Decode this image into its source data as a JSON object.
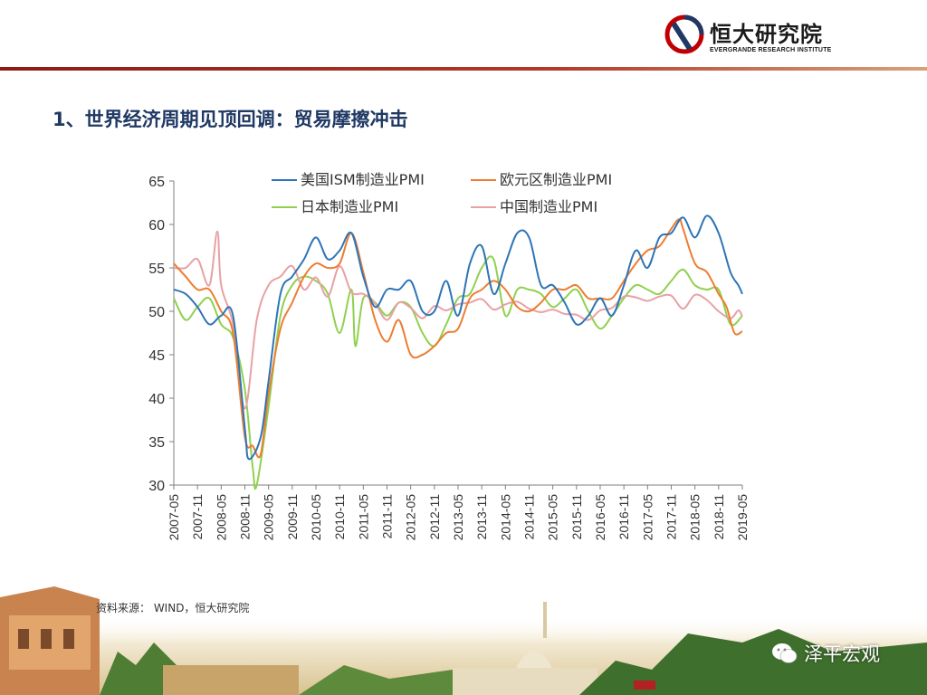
{
  "header": {
    "logo_cn": "恒大研究院",
    "logo_en": "EVERGRANDE RESEARCH INSTITUTE",
    "accent_color": "#8c1c13"
  },
  "slide": {
    "title": "1、世界经济周期见顶回调：贸易摩擦冲击"
  },
  "source": "资料来源： WIND，恒大研究院",
  "watermark": "泽平宏观",
  "chart_data": {
    "type": "line",
    "title": "",
    "xlabel": "",
    "ylabel": "",
    "ylim": [
      30,
      65
    ],
    "yticks": [
      30,
      35,
      40,
      45,
      50,
      55,
      60,
      65
    ],
    "xlim": [
      "2007-05",
      "2019-05"
    ],
    "xticks": [
      "2007-05",
      "2007-11",
      "2008-05",
      "2008-11",
      "2009-05",
      "2009-11",
      "2010-05",
      "2010-11",
      "2011-05",
      "2011-11",
      "2012-05",
      "2012-11",
      "2013-05",
      "2013-11",
      "2014-05",
      "2014-11",
      "2015-05",
      "2015-11",
      "2016-05",
      "2016-11",
      "2017-05",
      "2017-11",
      "2018-05",
      "2018-11",
      "2019-05"
    ],
    "grid": false,
    "legend_position": "top",
    "series": [
      {
        "name": "美国ISM制造业PMI",
        "color": "#2e75b6",
        "points": [
          [
            "2007-05",
            52.5
          ],
          [
            "2007-08",
            52
          ],
          [
            "2007-11",
            50.5
          ],
          [
            "2008-02",
            48.5
          ],
          [
            "2008-05",
            49.5
          ],
          [
            "2008-08",
            49.5
          ],
          [
            "2008-11",
            36.5
          ],
          [
            "2008-12",
            33
          ],
          [
            "2009-03",
            35.5
          ],
          [
            "2009-05",
            42
          ],
          [
            "2009-08",
            52
          ],
          [
            "2009-11",
            54
          ],
          [
            "2010-02",
            56
          ],
          [
            "2010-05",
            58.5
          ],
          [
            "2010-08",
            56
          ],
          [
            "2010-11",
            57
          ],
          [
            "2011-02",
            59
          ],
          [
            "2011-05",
            54
          ],
          [
            "2011-08",
            50.5
          ],
          [
            "2011-11",
            52.5
          ],
          [
            "2012-02",
            52.5
          ],
          [
            "2012-05",
            53.5
          ],
          [
            "2012-08",
            50
          ],
          [
            "2012-11",
            50
          ],
          [
            "2013-02",
            53.5
          ],
          [
            "2013-05",
            49.5
          ],
          [
            "2013-08",
            55.5
          ],
          [
            "2013-11",
            57.5
          ],
          [
            "2014-02",
            52
          ],
          [
            "2014-05",
            55.5
          ],
          [
            "2014-08",
            59
          ],
          [
            "2014-11",
            58.5
          ],
          [
            "2015-02",
            53
          ],
          [
            "2015-05",
            53
          ],
          [
            "2015-08",
            51
          ],
          [
            "2015-11",
            48.5
          ],
          [
            "2016-02",
            49.5
          ],
          [
            "2016-05",
            51.5
          ],
          [
            "2016-08",
            49.5
          ],
          [
            "2016-11",
            53
          ],
          [
            "2017-02",
            57
          ],
          [
            "2017-05",
            55
          ],
          [
            "2017-08",
            58.5
          ],
          [
            "2017-11",
            59
          ],
          [
            "2018-02",
            60.8
          ],
          [
            "2018-05",
            58.5
          ],
          [
            "2018-08",
            61
          ],
          [
            "2018-11",
            59
          ],
          [
            "2019-02",
            54.5
          ],
          [
            "2019-04",
            53
          ],
          [
            "2019-05",
            52
          ]
        ]
      },
      {
        "name": "欧元区制造业PMI",
        "color": "#ed7d31",
        "points": [
          [
            "2007-05",
            55.5
          ],
          [
            "2007-08",
            54
          ],
          [
            "2007-11",
            52.5
          ],
          [
            "2008-02",
            52.5
          ],
          [
            "2008-05",
            50
          ],
          [
            "2008-08",
            47.5
          ],
          [
            "2008-11",
            35.5
          ],
          [
            "2009-01",
            34.5
          ],
          [
            "2009-03",
            33.5
          ],
          [
            "2009-05",
            40.5
          ],
          [
            "2009-08",
            48
          ],
          [
            "2009-11",
            51
          ],
          [
            "2010-02",
            54
          ],
          [
            "2010-05",
            55.5
          ],
          [
            "2010-08",
            55
          ],
          [
            "2010-11",
            55.5
          ],
          [
            "2011-02",
            59
          ],
          [
            "2011-05",
            54.5
          ],
          [
            "2011-08",
            49
          ],
          [
            "2011-11",
            46.5
          ],
          [
            "2012-02",
            49
          ],
          [
            "2012-05",
            45
          ],
          [
            "2012-08",
            45
          ],
          [
            "2012-11",
            46
          ],
          [
            "2013-02",
            47.5
          ],
          [
            "2013-05",
            48
          ],
          [
            "2013-08",
            51.5
          ],
          [
            "2013-11",
            52.5
          ],
          [
            "2014-02",
            53.5
          ],
          [
            "2014-05",
            52.5
          ],
          [
            "2014-08",
            50.5
          ],
          [
            "2014-11",
            50
          ],
          [
            "2015-02",
            51
          ],
          [
            "2015-05",
            52.5
          ],
          [
            "2015-08",
            52.5
          ],
          [
            "2015-11",
            53
          ],
          [
            "2016-02",
            51.5
          ],
          [
            "2016-05",
            51.5
          ],
          [
            "2016-08",
            51.5
          ],
          [
            "2016-11",
            53.5
          ],
          [
            "2017-02",
            55.5
          ],
          [
            "2017-05",
            57
          ],
          [
            "2017-08",
            57.5
          ],
          [
            "2017-11",
            59.5
          ],
          [
            "2018-01",
            60.6
          ],
          [
            "2018-02",
            59.5
          ],
          [
            "2018-05",
            55.5
          ],
          [
            "2018-08",
            54.5
          ],
          [
            "2018-11",
            52
          ],
          [
            "2019-01",
            50.5
          ],
          [
            "2019-03",
            47.5
          ],
          [
            "2019-05",
            47.7
          ]
        ]
      },
      {
        "name": "日本制造业PMI",
        "color": "#8fd14f",
        "points": [
          [
            "2007-05",
            51.5
          ],
          [
            "2007-08",
            49
          ],
          [
            "2007-11",
            50.5
          ],
          [
            "2008-02",
            51.5
          ],
          [
            "2008-05",
            48.5
          ],
          [
            "2008-08",
            47
          ],
          [
            "2008-11",
            41
          ],
          [
            "2009-01",
            32
          ],
          [
            "2009-02",
            30
          ],
          [
            "2009-05",
            39
          ],
          [
            "2009-08",
            49.5
          ],
          [
            "2009-11",
            53
          ],
          [
            "2010-02",
            54
          ],
          [
            "2010-05",
            53.5
          ],
          [
            "2010-08",
            52
          ],
          [
            "2010-11",
            47.5
          ],
          [
            "2011-02",
            52.5
          ],
          [
            "2011-03",
            46
          ],
          [
            "2011-05",
            51.5
          ],
          [
            "2011-08",
            51
          ],
          [
            "2011-11",
            49.5
          ],
          [
            "2012-02",
            51
          ],
          [
            "2012-05",
            50.5
          ],
          [
            "2012-08",
            47.5
          ],
          [
            "2012-11",
            46
          ],
          [
            "2013-02",
            48.5
          ],
          [
            "2013-05",
            51.5
          ],
          [
            "2013-08",
            52
          ],
          [
            "2013-11",
            55
          ],
          [
            "2014-02",
            56
          ],
          [
            "2014-05",
            49.5
          ],
          [
            "2014-08",
            52.5
          ],
          [
            "2014-11",
            52.5
          ],
          [
            "2015-02",
            52
          ],
          [
            "2015-05",
            50.5
          ],
          [
            "2015-08",
            51.5
          ],
          [
            "2015-11",
            52.5
          ],
          [
            "2016-02",
            50
          ],
          [
            "2016-05",
            48
          ],
          [
            "2016-08",
            49.5
          ],
          [
            "2016-11",
            51.5
          ],
          [
            "2017-02",
            53
          ],
          [
            "2017-05",
            52.5
          ],
          [
            "2017-08",
            52
          ],
          [
            "2017-11",
            53.5
          ],
          [
            "2018-02",
            54.8
          ],
          [
            "2018-05",
            53
          ],
          [
            "2018-08",
            52.5
          ],
          [
            "2018-11",
            52.5
          ],
          [
            "2019-02",
            48.5
          ],
          [
            "2019-05",
            49.5
          ]
        ]
      },
      {
        "name": "中国制造业PMI",
        "color": "#e8a1a5",
        "points": [
          [
            "2007-05",
            55
          ],
          [
            "2007-08",
            55
          ],
          [
            "2007-11",
            56
          ],
          [
            "2008-02",
            53
          ],
          [
            "2008-04",
            59.2
          ],
          [
            "2008-05",
            53
          ],
          [
            "2008-08",
            48.5
          ],
          [
            "2008-11",
            38.8
          ],
          [
            "2009-02",
            49
          ],
          [
            "2009-05",
            53
          ],
          [
            "2009-08",
            54
          ],
          [
            "2009-11",
            55.2
          ],
          [
            "2010-02",
            52.5
          ],
          [
            "2010-05",
            53.9
          ],
          [
            "2010-08",
            51.7
          ],
          [
            "2010-11",
            55.2
          ],
          [
            "2011-02",
            52.2
          ],
          [
            "2011-05",
            52
          ],
          [
            "2011-08",
            50.9
          ],
          [
            "2011-11",
            49
          ],
          [
            "2012-02",
            51
          ],
          [
            "2012-05",
            50.4
          ],
          [
            "2012-08",
            49.2
          ],
          [
            "2012-11",
            50.6
          ],
          [
            "2013-02",
            50.1
          ],
          [
            "2013-05",
            50.8
          ],
          [
            "2013-08",
            51
          ],
          [
            "2013-11",
            51.4
          ],
          [
            "2014-02",
            50.2
          ],
          [
            "2014-05",
            50.8
          ],
          [
            "2014-08",
            51.1
          ],
          [
            "2014-11",
            50.3
          ],
          [
            "2015-02",
            49.9
          ],
          [
            "2015-05",
            50.2
          ],
          [
            "2015-08",
            49.7
          ],
          [
            "2015-11",
            49.6
          ],
          [
            "2016-02",
            49
          ],
          [
            "2016-05",
            50.1
          ],
          [
            "2016-08",
            50.4
          ],
          [
            "2016-11",
            51.7
          ],
          [
            "2017-02",
            51.6
          ],
          [
            "2017-05",
            51.2
          ],
          [
            "2017-08",
            51.7
          ],
          [
            "2017-11",
            51.8
          ],
          [
            "2018-02",
            50.3
          ],
          [
            "2018-05",
            51.9
          ],
          [
            "2018-08",
            51.3
          ],
          [
            "2018-11",
            50
          ],
          [
            "2019-02",
            49.2
          ],
          [
            "2019-04",
            50.1
          ],
          [
            "2019-05",
            49.4
          ]
        ]
      }
    ]
  }
}
